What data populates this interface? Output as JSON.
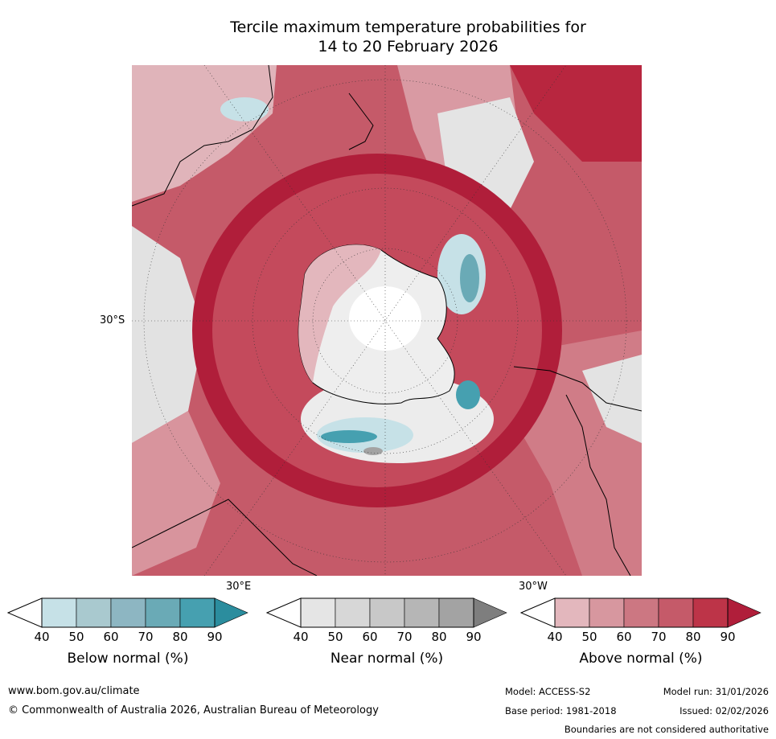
{
  "title": {
    "line1": "Tercile maximum temperature probabilities for",
    "line2": "14 to 20 February 2026"
  },
  "map": {
    "lat_label": "30°S",
    "lon_label_east": "30°E",
    "lon_label_west": "30°W"
  },
  "legends": [
    {
      "title": "Below normal (%)",
      "ticks": [
        "40",
        "50",
        "60",
        "70",
        "80",
        "90"
      ],
      "colors": [
        "#c6e1e7",
        "#a9c9cf",
        "#8db6c2",
        "#6aaab6",
        "#46a0b0",
        "#2b8d9e"
      ]
    },
    {
      "title": "Near normal (%)",
      "ticks": [
        "40",
        "50",
        "60",
        "70",
        "80",
        "90"
      ],
      "colors": [
        "#e5e5e5",
        "#d7d7d7",
        "#c8c8c8",
        "#b6b6b6",
        "#a3a3a3",
        "#7e7e7e"
      ]
    },
    {
      "title": "Above normal (%)",
      "ticks": [
        "40",
        "50",
        "60",
        "70",
        "80",
        "90"
      ],
      "colors": [
        "#e3b7bd",
        "#d7979f",
        "#cc7782",
        "#c55a69",
        "#bd3448",
        "#b01e3a"
      ]
    }
  ],
  "footer": {
    "url": "www.bom.gov.au/climate",
    "copyright": "© Commonwealth of Australia 2026, Australian Bureau of Meteorology",
    "model": "Model: ACCESS-S2",
    "model_run": "Model run: 31/01/2026",
    "base_period": "Base period: 1981-2018",
    "issued": "Issued: 02/02/2026",
    "disclaimer": "Boundaries are not considered authoritative"
  },
  "colors": {
    "map_red_dark": "#b01e3a",
    "map_red_mid": "#c55a69",
    "map_red_light": "#e3b7bd",
    "map_grey": "#e0e0e0",
    "map_teal": "#6aaab6"
  }
}
